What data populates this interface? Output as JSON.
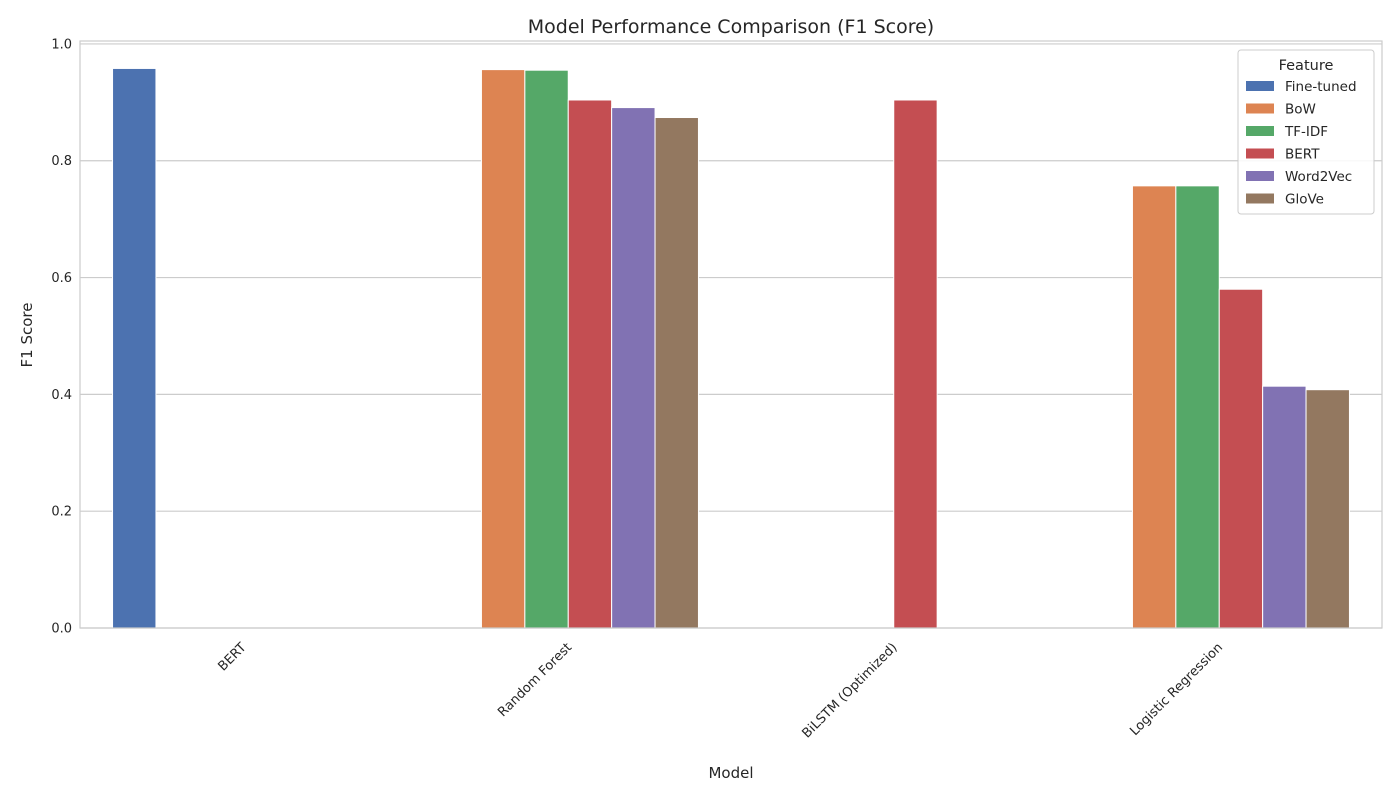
{
  "chart_data": {
    "type": "bar",
    "title": "Model Performance Comparison (F1 Score)",
    "xlabel": "Model",
    "ylabel": "F1 Score",
    "ylim": [
      0,
      1.0
    ],
    "yticks": [
      "0.0",
      "0.2",
      "0.4",
      "0.6",
      "0.8",
      "1.0"
    ],
    "categories": [
      "BERT",
      "Random Forest",
      "BiLSTM (Optimized)",
      "Logistic Regression"
    ],
    "legend": {
      "title": "Feature",
      "placement": "top-right"
    },
    "grid": "horizontal",
    "series": [
      {
        "name": "Fine-tuned",
        "color": "#4c72b0",
        "values": [
          0.958,
          null,
          null,
          null
        ]
      },
      {
        "name": "BoW",
        "color": "#dd8452",
        "values": [
          null,
          0.956,
          null,
          0.757
        ]
      },
      {
        "name": "TF-IDF",
        "color": "#55a868",
        "values": [
          null,
          0.955,
          null,
          0.757
        ]
      },
      {
        "name": "BERT",
        "color": "#c44e52",
        "values": [
          null,
          0.904,
          0.904,
          0.58
        ]
      },
      {
        "name": "Word2Vec",
        "color": "#8172b3",
        "values": [
          null,
          0.891,
          null,
          0.414
        ]
      },
      {
        "name": "GloVe",
        "color": "#937860",
        "values": [
          null,
          0.874,
          null,
          0.408
        ]
      }
    ]
  }
}
